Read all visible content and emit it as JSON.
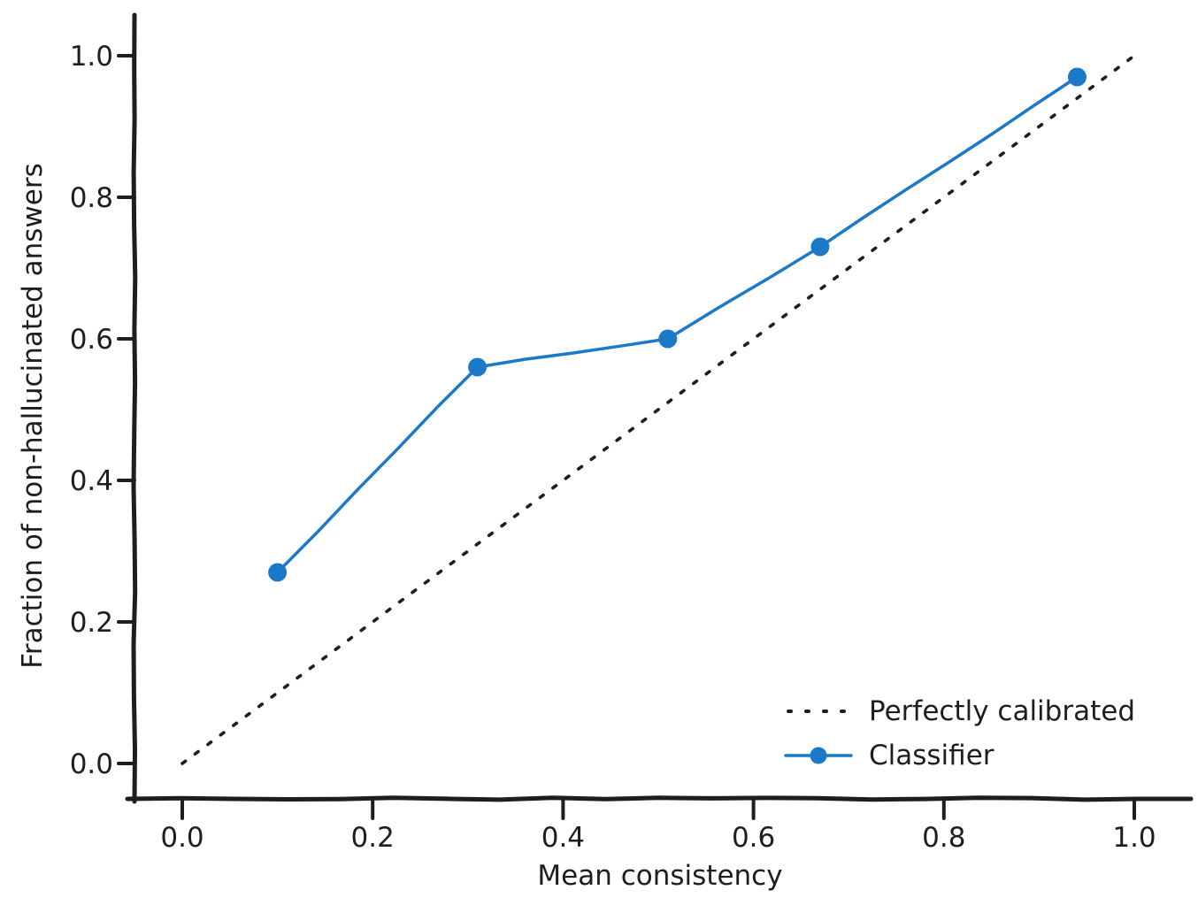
{
  "figure": {
    "background": "#ffffff",
    "axis_color": "#1e1e1e",
    "accent_blue": "#1c78c8"
  },
  "chart_data": {
    "type": "line",
    "title": "",
    "xlabel": "Mean consistency",
    "ylabel": "Fraction of non-hallucinated answers",
    "xlim": [
      0.0,
      1.0
    ],
    "ylim": [
      0.0,
      1.0
    ],
    "grid": false,
    "legend": {
      "position": "lower right",
      "entries": [
        "Perfectly calibrated",
        "Classifier"
      ]
    },
    "xticks": {
      "values": [
        0.0,
        0.2,
        0.4,
        0.6,
        0.8,
        1.0
      ],
      "labels": [
        "0.0",
        "0.2",
        "0.4",
        "0.6",
        "0.8",
        "1.0"
      ]
    },
    "yticks": {
      "values": [
        0.0,
        0.2,
        0.4,
        0.6,
        0.8,
        1.0
      ],
      "labels": [
        "0.0",
        "0.2",
        "0.4",
        "0.6",
        "0.8",
        "1.0"
      ]
    },
    "series": [
      {
        "name": "Perfectly calibrated",
        "style": "dotted",
        "color": "#1e1e1e",
        "marker": "none",
        "x": [
          0.0,
          1.0
        ],
        "y": [
          0.0,
          1.0
        ]
      },
      {
        "name": "Classifier",
        "style": "solid",
        "color": "#1c78c8",
        "marker": "circle",
        "x": [
          0.1,
          0.31,
          0.51,
          0.67,
          0.94
        ],
        "y": [
          0.27,
          0.56,
          0.6,
          0.73,
          0.97
        ]
      }
    ]
  }
}
